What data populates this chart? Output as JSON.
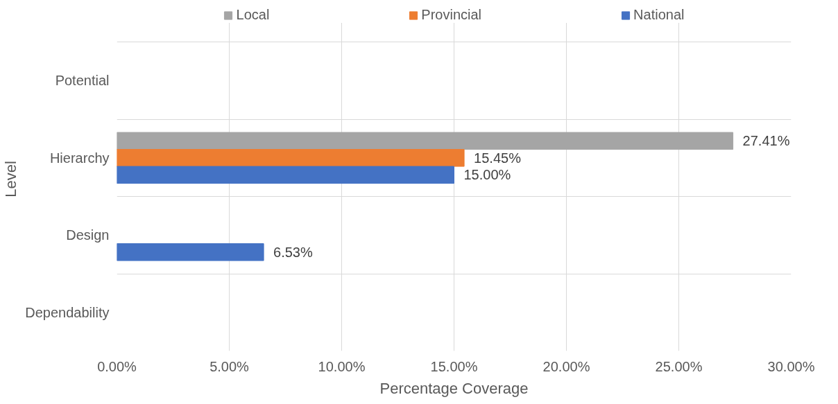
{
  "chart_data": {
    "type": "bar",
    "orientation": "horizontal",
    "xlabel": "Percentage Coverage",
    "ylabel": "Level",
    "categories": [
      "Potential",
      "Hierarchy",
      "Design",
      "Dependability"
    ],
    "series": [
      {
        "name": "Local",
        "color": "#a5a5a5",
        "values": [
          null,
          27.41,
          null,
          null
        ],
        "value_labels": [
          null,
          "27.41%",
          null,
          null
        ]
      },
      {
        "name": "Provincial",
        "color": "#ed7d31",
        "values": [
          null,
          15.45,
          null,
          null
        ],
        "value_labels": [
          null,
          "15.45%",
          null,
          null
        ]
      },
      {
        "name": "National",
        "color": "#4472c4",
        "values": [
          null,
          15.0,
          6.53,
          null
        ],
        "value_labels": [
          null,
          "15.00%",
          "6.53%",
          null
        ]
      }
    ],
    "xlim": [
      0,
      30
    ],
    "xticks": [
      {
        "value": 0,
        "label": "0.00%"
      },
      {
        "value": 5,
        "label": "5.00%"
      },
      {
        "value": 10,
        "label": "10.00%"
      },
      {
        "value": 15,
        "label": "15.00%"
      },
      {
        "value": 20,
        "label": "20.00%"
      },
      {
        "value": 25,
        "label": "25.00%"
      },
      {
        "value": 30,
        "label": "30.00%"
      }
    ],
    "grid": true,
    "legend": "top"
  }
}
